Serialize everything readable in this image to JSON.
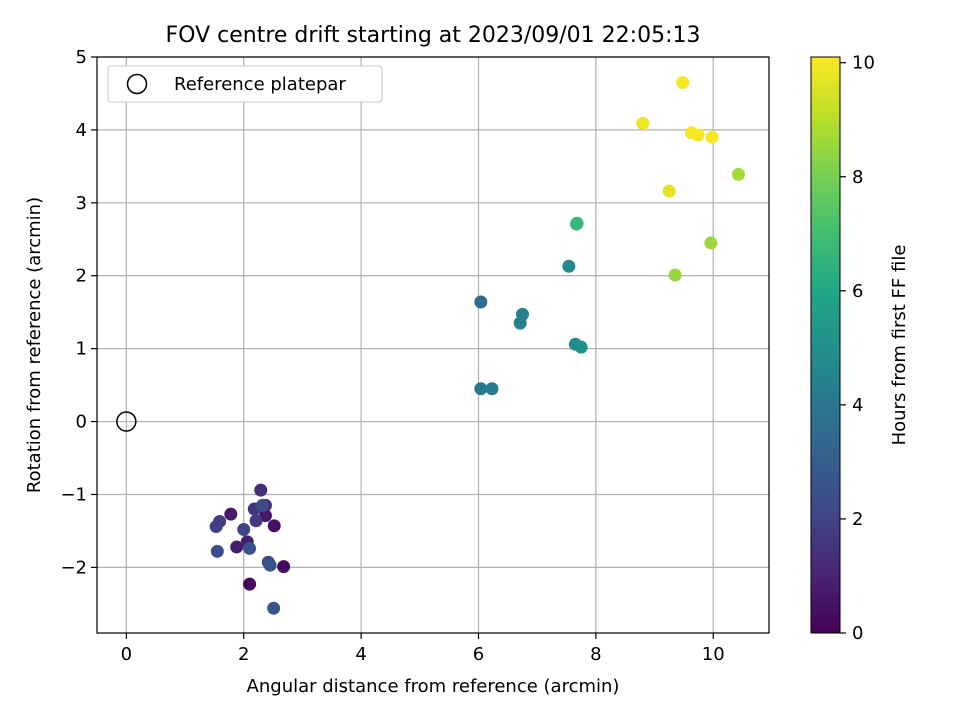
{
  "chart_data": {
    "type": "scatter",
    "title": "FOV centre drift starting at 2023/09/01 22:05:13",
    "xlabel": "Angular distance from reference (arcmin)",
    "ylabel": "Rotation from reference (arcmin)",
    "xlim": [
      -0.5,
      10.95
    ],
    "ylim": [
      -2.9,
      5.0
    ],
    "xticks": [
      0,
      2,
      4,
      6,
      8,
      10
    ],
    "yticks": [
      -2,
      -1,
      0,
      1,
      2,
      3,
      4,
      5
    ],
    "xtick_labels": [
      "0",
      "2",
      "4",
      "6",
      "8",
      "10"
    ],
    "ytick_labels": [
      "−2",
      "−1",
      "0",
      "1",
      "2",
      "3",
      "4",
      "5"
    ],
    "grid": true,
    "legend": {
      "location": "upper left",
      "entries": [
        "Reference platepar"
      ]
    },
    "reference_point": {
      "x": 0,
      "y": 0,
      "label": "Reference platepar"
    },
    "colorbar": {
      "label": "Hours from first FF file",
      "range": [
        0,
        10.1
      ],
      "ticks": [
        0,
        2,
        4,
        6,
        8,
        10
      ],
      "tick_labels": [
        "0",
        "2",
        "4",
        "6",
        "8",
        "10"
      ],
      "colormap": "viridis"
    },
    "points": [
      {
        "x": 2.1,
        "y": -2.23,
        "c": 0.2
      },
      {
        "x": 2.68,
        "y": -1.99,
        "c": 0.3
      },
      {
        "x": 2.52,
        "y": -1.43,
        "c": 0.5
      },
      {
        "x": 2.37,
        "y": -1.29,
        "c": 0.6
      },
      {
        "x": 1.78,
        "y": -1.27,
        "c": 0.7
      },
      {
        "x": 1.88,
        "y": -1.72,
        "c": 0.8
      },
      {
        "x": 2.06,
        "y": -1.65,
        "c": 0.9
      },
      {
        "x": 2.37,
        "y": -1.15,
        "c": 1.1
      },
      {
        "x": 2.29,
        "y": -0.94,
        "c": 1.3
      },
      {
        "x": 2.18,
        "y": -1.2,
        "c": 1.5
      },
      {
        "x": 2.21,
        "y": -1.36,
        "c": 1.7
      },
      {
        "x": 1.59,
        "y": -1.37,
        "c": 1.8
      },
      {
        "x": 1.53,
        "y": -1.44,
        "c": 1.9
      },
      {
        "x": 2.0,
        "y": -1.48,
        "c": 2.1
      },
      {
        "x": 2.42,
        "y": -1.93,
        "c": 2.2
      },
      {
        "x": 2.32,
        "y": -1.15,
        "c": 2.3
      },
      {
        "x": 1.55,
        "y": -1.78,
        "c": 2.4
      },
      {
        "x": 2.1,
        "y": -1.74,
        "c": 2.5
      },
      {
        "x": 2.45,
        "y": -1.97,
        "c": 2.6
      },
      {
        "x": 2.51,
        "y": -2.56,
        "c": 2.7
      },
      {
        "x": 6.04,
        "y": 1.64,
        "c": 3.6
      },
      {
        "x": 6.04,
        "y": 0.45,
        "c": 4.0
      },
      {
        "x": 6.23,
        "y": 0.45,
        "c": 4.2
      },
      {
        "x": 6.71,
        "y": 1.35,
        "c": 4.4
      },
      {
        "x": 6.75,
        "y": 1.47,
        "c": 4.5
      },
      {
        "x": 7.54,
        "y": 2.13,
        "c": 4.7
      },
      {
        "x": 7.65,
        "y": 1.06,
        "c": 4.9
      },
      {
        "x": 7.75,
        "y": 1.02,
        "c": 5.0
      },
      {
        "x": 7.67,
        "y": 2.71,
        "c": 6.6
      },
      {
        "x": 7.68,
        "y": 2.72,
        "c": 6.7
      },
      {
        "x": 9.35,
        "y": 2.01,
        "c": 8.5
      },
      {
        "x": 9.96,
        "y": 2.45,
        "c": 8.6
      },
      {
        "x": 10.43,
        "y": 3.39,
        "c": 8.7
      },
      {
        "x": 9.25,
        "y": 3.16,
        "c": 9.7
      },
      {
        "x": 8.8,
        "y": 4.09,
        "c": 9.9
      },
      {
        "x": 9.63,
        "y": 3.96,
        "c": 10.0
      },
      {
        "x": 9.74,
        "y": 3.93,
        "c": 10.0
      },
      {
        "x": 9.98,
        "y": 3.9,
        "c": 10.0
      },
      {
        "x": 9.48,
        "y": 4.65,
        "c": 10.0
      }
    ]
  }
}
